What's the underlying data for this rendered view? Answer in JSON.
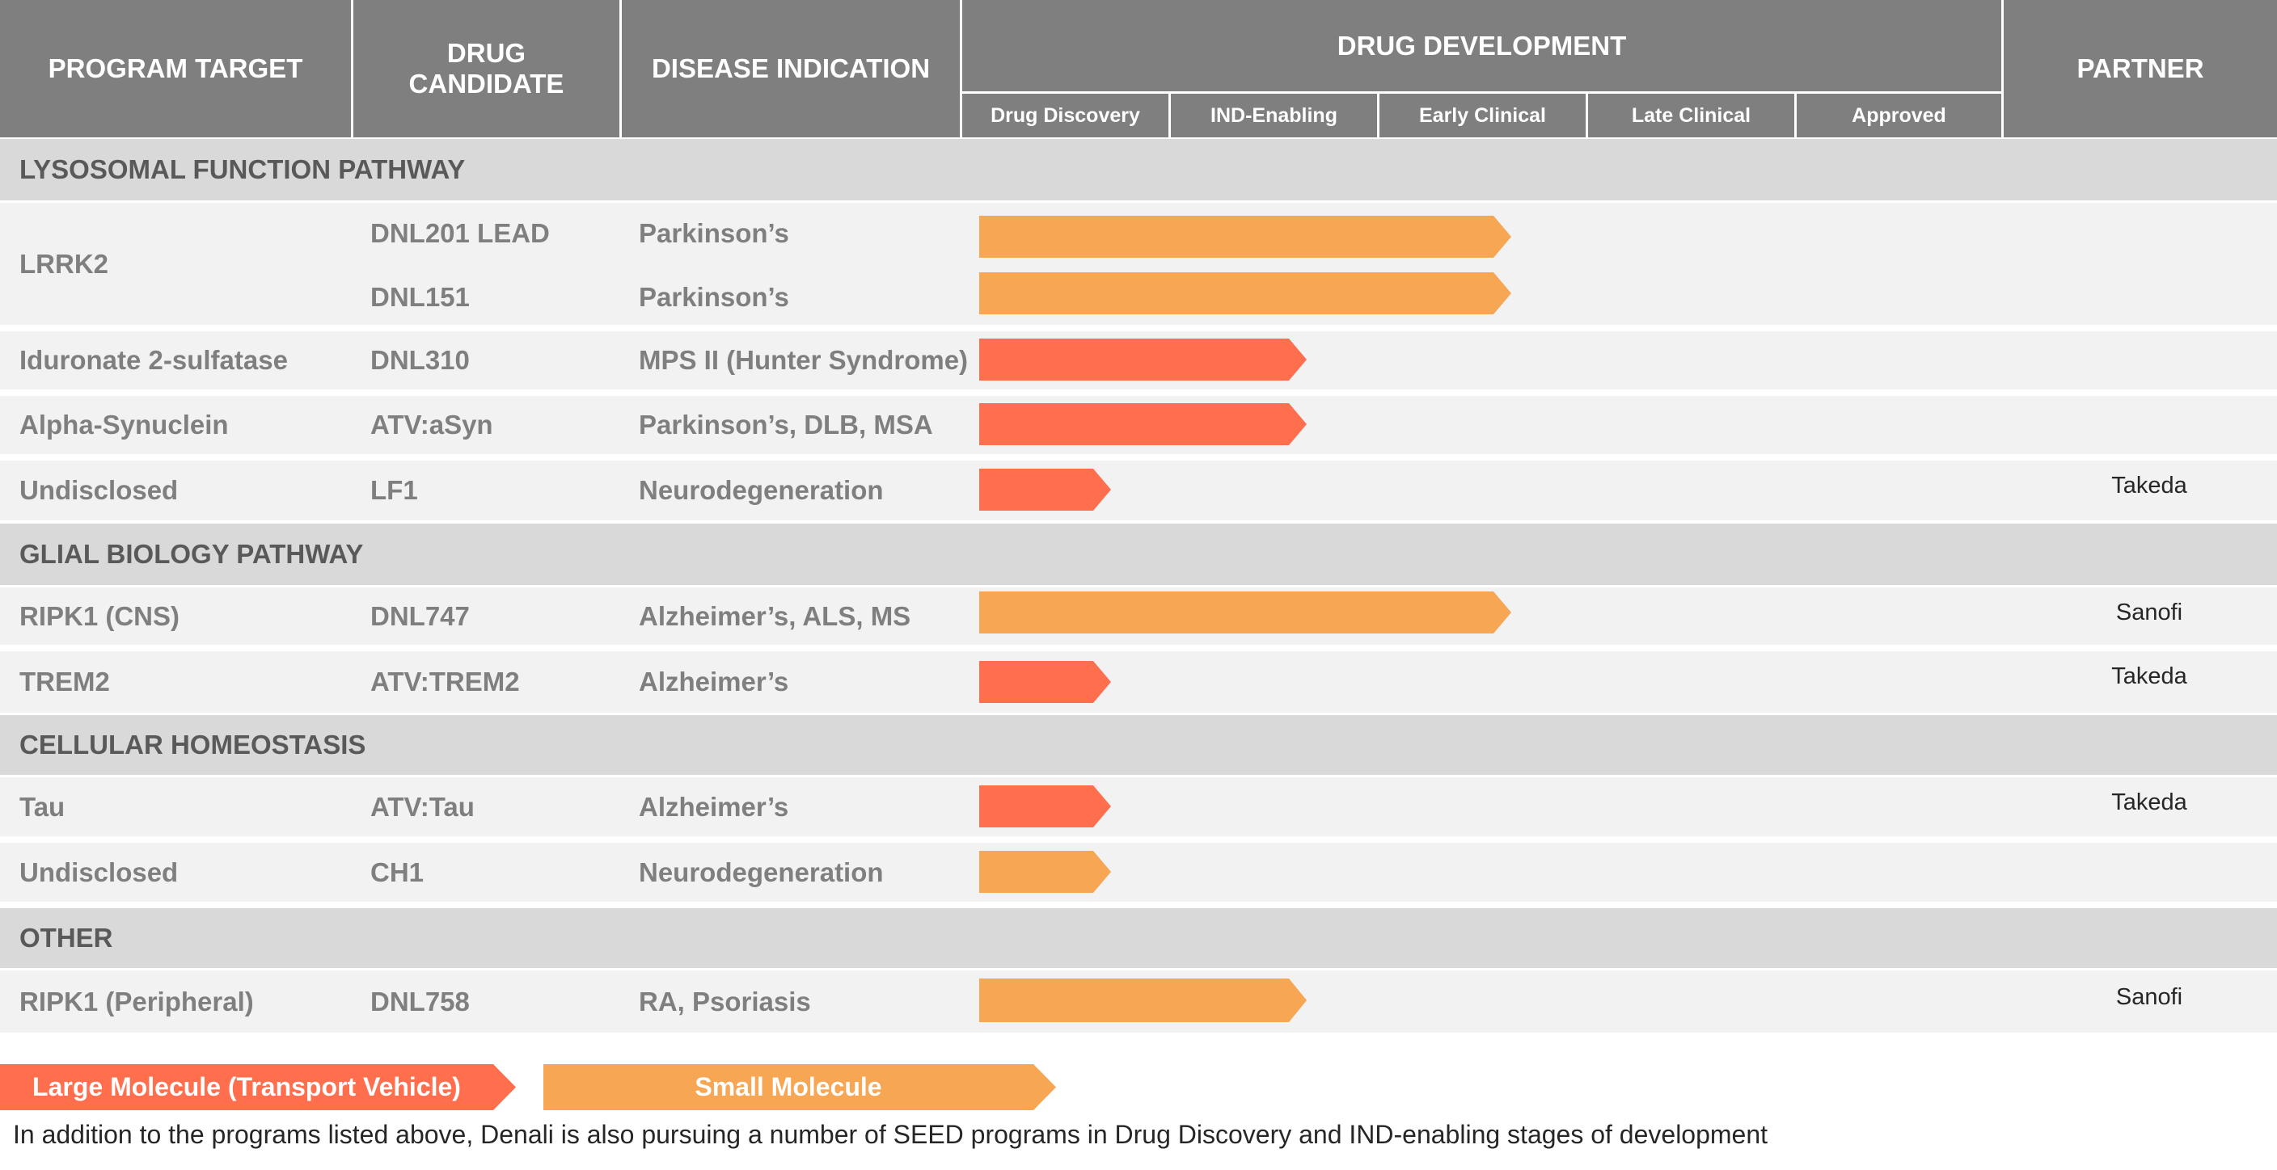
{
  "header": {
    "program_target": "PROGRAM TARGET",
    "drug_candidate": "DRUG CANDIDATE",
    "disease_indication": "DISEASE INDICATION",
    "drug_development": "DRUG DEVELOPMENT",
    "partner": "PARTNER",
    "stages": [
      "Drug Discovery",
      "IND-Enabling",
      "Early Clinical",
      "Late Clinical",
      "Approved"
    ]
  },
  "sections": {
    "lysosomal": "LYSOSOMAL FUNCTION PATHWAY",
    "glial": "GLIAL BIOLOGY PATHWAY",
    "cellular": "CELLULAR HOMEOSTASIS",
    "other": "OTHER"
  },
  "programs": [
    {
      "target": "LRRK2",
      "candidate": "DNL201 LEAD",
      "indication": "Parkinson’s",
      "partner": "",
      "progress_stages": 2.55,
      "molecule": "small"
    },
    {
      "target": "",
      "candidate": "DNL151",
      "indication": "Parkinson’s",
      "partner": "",
      "progress_stages": 2.55,
      "molecule": "small"
    },
    {
      "target": "Iduronate 2-sulfatase",
      "candidate": "DNL310",
      "indication": "MPS II (Hunter Syndrome)",
      "partner": "",
      "progress_stages": 1.57,
      "molecule": "large"
    },
    {
      "target": "Alpha-Synuclein",
      "candidate": "ATV:aSyn",
      "indication": "Parkinson’s, DLB, MSA",
      "partner": "",
      "progress_stages": 1.57,
      "molecule": "large"
    },
    {
      "target": "Undisclosed",
      "candidate": "LF1",
      "indication": "Neurodegeneration",
      "partner": "Takeda",
      "progress_stages": 0.63,
      "molecule": "large"
    },
    {
      "target": "RIPK1 (CNS)",
      "candidate": "DNL747",
      "indication": "Alzheimer’s, ALS, MS",
      "partner": "Sanofi",
      "progress_stages": 2.55,
      "molecule": "small"
    },
    {
      "target": "TREM2",
      "candidate": "ATV:TREM2",
      "indication": "Alzheimer’s",
      "partner": "Takeda",
      "progress_stages": 0.63,
      "molecule": "large"
    },
    {
      "target": "Tau",
      "candidate": "ATV:Tau",
      "indication": "Alzheimer’s",
      "partner": "Takeda",
      "progress_stages": 0.63,
      "molecule": "large"
    },
    {
      "target": "Undisclosed",
      "candidate": "CH1",
      "indication": "Neurodegeneration",
      "partner": "",
      "progress_stages": 0.63,
      "molecule": "small"
    },
    {
      "target": "RIPK1 (Peripheral)",
      "candidate": "DNL758",
      "indication": "RA, Psoriasis",
      "partner": "Sanofi",
      "progress_stages": 1.57,
      "molecule": "small"
    }
  ],
  "legend": {
    "large": "Large Molecule (Transport Vehicle)",
    "small": "Small Molecule"
  },
  "colors": {
    "large_molecule": "#ff6f4e",
    "small_molecule": "#f7a654",
    "header": "#7f7f7f"
  },
  "footnote": "In addition to the programs listed above, Denali is also pursuing a number of SEED programs in Drug Discovery and IND-enabling stages of development"
}
